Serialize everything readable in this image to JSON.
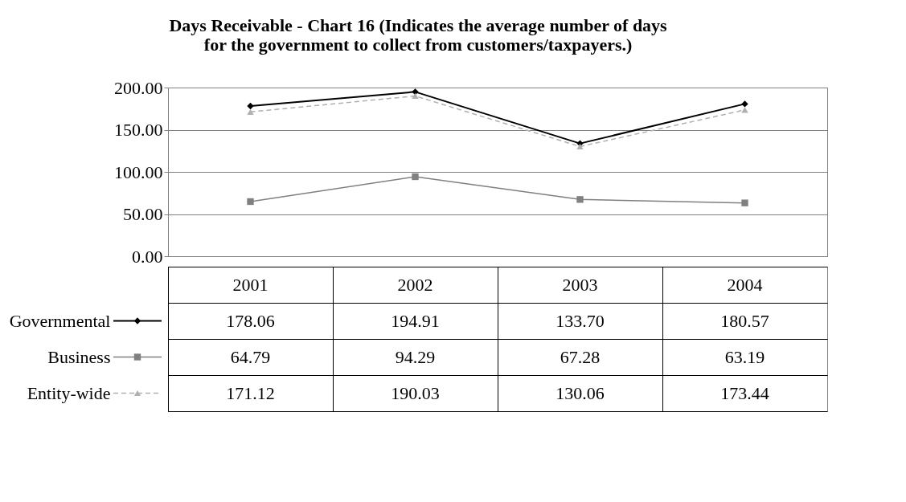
{
  "chart_data": {
    "type": "line",
    "title": "Days Receivable - Chart 16 (Indicates the average number of days\nfor the government to collect from customers/taxpayers.)",
    "categories": [
      "2001",
      "2002",
      "2003",
      "2004"
    ],
    "series": [
      {
        "name": "Governmental",
        "color": "#000000",
        "marker": "diamond",
        "line_style": "solid",
        "values": [
          178.06,
          194.91,
          133.7,
          180.57
        ],
        "value_labels": [
          "178.06",
          "194.91",
          "133.70",
          "180.57"
        ]
      },
      {
        "name": "Business",
        "color": "#808080",
        "marker": "square",
        "line_style": "solid",
        "values": [
          64.79,
          94.29,
          67.28,
          63.19
        ],
        "value_labels": [
          "64.79",
          "94.29",
          "67.28",
          "63.19"
        ]
      },
      {
        "name": "Entity-wide",
        "color": "#b0b0b0",
        "marker": "triangle",
        "line_style": "dashed",
        "values": [
          171.12,
          190.03,
          130.06,
          173.44
        ],
        "value_labels": [
          "171.12",
          "190.03",
          "130.06",
          "173.44"
        ]
      }
    ],
    "ylim": [
      0,
      200
    ],
    "yticks": [
      {
        "value": 0,
        "label": "0.00"
      },
      {
        "value": 50,
        "label": "50.00"
      },
      {
        "value": 100,
        "label": "100.00"
      },
      {
        "value": 150,
        "label": "150.00"
      },
      {
        "value": 200,
        "label": "200.00"
      }
    ],
    "grid": "y",
    "legend": "bottom"
  }
}
